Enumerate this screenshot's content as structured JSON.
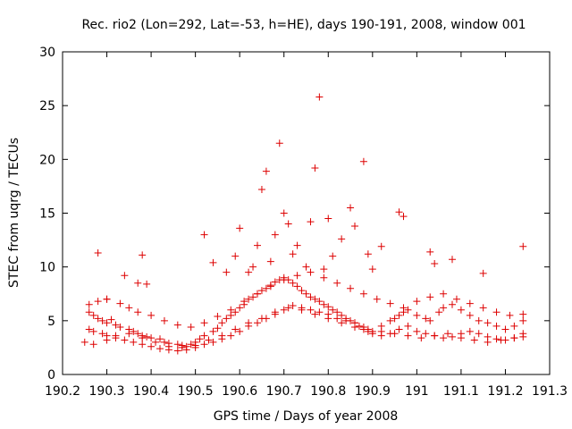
{
  "chart_data": {
    "type": "scatter",
    "title": "Rec. rio2 (Lon=292, Lat=-53, h=HE), days 190-191, 2008, window 001",
    "xlabel": "GPS time / Days of year 2008",
    "ylabel": "STEC from uqrg / TECUs",
    "xlim": [
      190.2,
      191.3
    ],
    "ylim": [
      0,
      30
    ],
    "xticks": [
      "190.2",
      "190.3",
      "190.4",
      "190.5",
      "190.6",
      "190.7",
      "190.8",
      "190.9",
      "191",
      "191.1",
      "191.2",
      "191.3"
    ],
    "yticks": [
      "0",
      "5",
      "10",
      "15",
      "20",
      "25",
      "30"
    ],
    "grid": false,
    "legend": "none",
    "marker": "plus",
    "color": "#dd0000",
    "series": [
      {
        "x": [
          190.26,
          190.27,
          190.28,
          190.29,
          190.3,
          190.31,
          190.32,
          190.33,
          190.35,
          190.36,
          190.37,
          190.38,
          190.39,
          190.4,
          190.42,
          190.43,
          190.44,
          190.46,
          190.47,
          190.48,
          190.49,
          190.5,
          190.51,
          190.52,
          190.54,
          190.55,
          190.56,
          190.57,
          190.58,
          190.59,
          190.6,
          190.61,
          190.62,
          190.63,
          190.64,
          190.65,
          190.66,
          190.67,
          190.68,
          190.69,
          190.7,
          190.71,
          190.72,
          190.73,
          190.74,
          190.75,
          190.76,
          190.77,
          190.78,
          190.79,
          190.8,
          190.81,
          190.82,
          190.83,
          190.84,
          190.85,
          190.86,
          190.87,
          190.88,
          190.89,
          190.9,
          190.92,
          190.94,
          190.95,
          190.96,
          190.97,
          190.98,
          191.0,
          191.02,
          191.03,
          191.05,
          191.06,
          191.08,
          191.1,
          191.12,
          191.14,
          191.16,
          191.18,
          191.2,
          191.22,
          191.24,
          190.26,
          190.27,
          190.29,
          190.3,
          190.32,
          190.34,
          190.36,
          190.38,
          190.4,
          190.42,
          190.44,
          190.46,
          190.48,
          190.5,
          190.52,
          190.54,
          190.56,
          190.58,
          190.6,
          190.62,
          190.64,
          190.66,
          190.68,
          190.7,
          190.72,
          190.74,
          190.76,
          190.78,
          190.8,
          190.82,
          190.84,
          190.86,
          190.88,
          190.9,
          190.92,
          190.94,
          190.96,
          190.98,
          191.0,
          191.02,
          191.04,
          191.06,
          191.08,
          191.1,
          191.12,
          191.14,
          191.16,
          191.18,
          191.2,
          191.22,
          191.24,
          190.26,
          190.28,
          190.3,
          190.33,
          190.35,
          190.37,
          190.4,
          190.43,
          190.46,
          190.49,
          190.52,
          190.55,
          190.58,
          190.61,
          190.64,
          190.67,
          190.7,
          190.73,
          190.76,
          190.79,
          190.82,
          190.85,
          190.88,
          190.91,
          190.94,
          190.97,
          191.0,
          191.03,
          191.06,
          191.09,
          191.12,
          191.15,
          191.18,
          191.21,
          191.24,
          190.25,
          190.27,
          190.3,
          190.32,
          190.35,
          190.38,
          190.41,
          190.44,
          190.47,
          190.5,
          190.53,
          190.56,
          190.59,
          190.62,
          190.65,
          190.68,
          190.71,
          190.74,
          190.77,
          190.8,
          190.83,
          190.86,
          190.89,
          190.92,
          190.95,
          190.98,
          191.01,
          191.04,
          191.07,
          191.1,
          191.13,
          191.16,
          191.19,
          191.22,
          191.24,
          190.28,
          190.3,
          190.34,
          190.37,
          190.38,
          190.39,
          190.52,
          190.54,
          190.57,
          190.59,
          190.6,
          190.62,
          190.63,
          190.64,
          190.65,
          190.66,
          190.67,
          190.68,
          190.69,
          190.7,
          190.71,
          190.72,
          190.73,
          190.75,
          190.76,
          190.77,
          190.78,
          190.79,
          190.8,
          190.81,
          190.83,
          190.85,
          190.86,
          190.88,
          190.89,
          190.9,
          190.92,
          190.96,
          190.97,
          191.03,
          191.04,
          191.08,
          191.15,
          191.24
        ],
        "y": [
          5.8,
          5.5,
          5.2,
          5.0,
          4.8,
          5.1,
          4.6,
          4.4,
          4.2,
          4.0,
          3.8,
          3.6,
          3.5,
          3.4,
          3.3,
          3.0,
          2.9,
          2.8,
          2.7,
          2.6,
          2.8,
          3.0,
          3.3,
          3.6,
          4.0,
          4.3,
          4.8,
          5.2,
          5.5,
          5.8,
          6.2,
          6.5,
          7.0,
          7.2,
          7.5,
          7.8,
          8.0,
          8.3,
          8.6,
          8.8,
          9.0,
          8.8,
          8.5,
          8.2,
          7.8,
          7.5,
          7.2,
          7.0,
          6.8,
          6.5,
          6.3,
          6.0,
          5.8,
          5.5,
          5.2,
          5.0,
          4.8,
          4.5,
          4.2,
          4.0,
          3.8,
          4.5,
          5.0,
          5.2,
          5.5,
          5.8,
          6.0,
          5.5,
          5.2,
          5.0,
          5.8,
          6.2,
          6.5,
          6.0,
          5.5,
          5.0,
          4.8,
          4.5,
          4.2,
          4.5,
          5.0,
          4.2,
          4.0,
          3.8,
          3.6,
          3.4,
          3.2,
          3.0,
          2.8,
          2.6,
          2.4,
          2.3,
          2.2,
          2.3,
          2.5,
          2.8,
          3.0,
          3.3,
          3.6,
          4.0,
          4.5,
          4.8,
          5.2,
          5.6,
          6.0,
          6.4,
          6.2,
          6.0,
          5.8,
          5.6,
          5.2,
          5.0,
          4.8,
          4.4,
          4.0,
          3.6,
          3.8,
          4.2,
          4.5,
          4.0,
          3.8,
          3.6,
          3.4,
          3.5,
          3.8,
          4.0,
          3.8,
          3.5,
          3.3,
          3.2,
          3.4,
          3.8,
          6.5,
          6.8,
          7.0,
          6.6,
          6.2,
          5.8,
          5.5,
          5.0,
          4.6,
          4.4,
          4.8,
          5.4,
          6.0,
          6.8,
          7.5,
          8.2,
          8.8,
          9.2,
          9.5,
          9.0,
          8.5,
          8.0,
          7.5,
          7.0,
          6.6,
          6.2,
          6.8,
          7.2,
          7.5,
          7.0,
          6.6,
          6.2,
          5.8,
          5.5,
          5.6,
          3.0,
          2.8,
          3.2,
          3.6,
          3.8,
          3.4,
          3.0,
          2.6,
          2.5,
          2.7,
          3.2,
          3.6,
          4.2,
          4.8,
          5.2,
          5.8,
          6.2,
          6.0,
          5.6,
          5.2,
          4.8,
          4.4,
          4.2,
          4.0,
          3.8,
          3.6,
          3.4,
          3.6,
          3.8,
          3.4,
          3.2,
          3.0,
          3.2,
          3.4,
          3.5,
          11.3,
          7.0,
          9.2,
          8.5,
          11.1,
          8.4,
          13.0,
          10.4,
          9.5,
          11.0,
          13.6,
          9.5,
          10.0,
          12.0,
          17.2,
          18.9,
          10.5,
          13.0,
          21.5,
          15.0,
          14.0,
          11.2,
          12.0,
          10.0,
          14.2,
          19.2,
          25.8,
          9.8,
          14.5,
          11.0,
          12.6,
          15.5,
          13.8,
          19.8,
          11.2,
          9.8,
          11.9,
          15.1,
          14.7,
          11.4,
          10.3,
          10.7,
          9.4,
          11.9
        ]
      }
    ]
  }
}
